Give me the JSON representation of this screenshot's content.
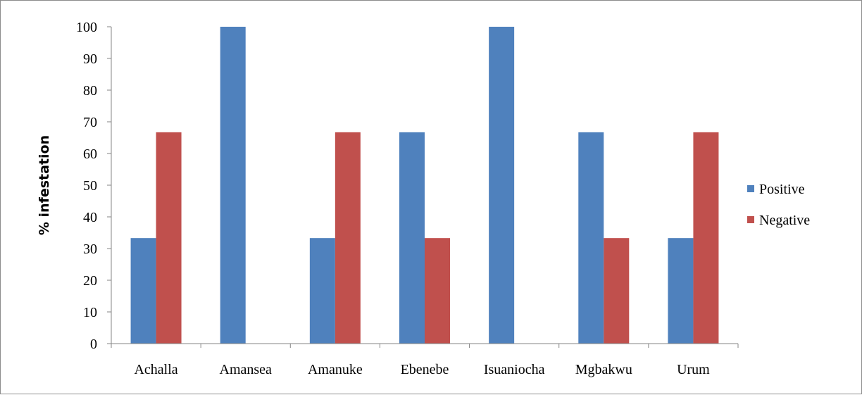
{
  "chart_data": {
    "type": "bar",
    "title": "",
    "xlabel": "",
    "ylabel": "% infestation",
    "ylim": [
      0,
      100
    ],
    "yticks": [
      "0",
      "10",
      "20",
      "30",
      "40",
      "50",
      "60",
      "70",
      "80",
      "90",
      "100"
    ],
    "categories": [
      "Achalla",
      "Amansea",
      "Amanuke",
      "Ebenebe",
      "Isuaniocha",
      "Mgbakwu",
      "Urum"
    ],
    "series": [
      {
        "name": "Positive",
        "color": "#4f81bd",
        "values": [
          33.3,
          100,
          33.3,
          66.7,
          100,
          66.7,
          33.3
        ]
      },
      {
        "name": "Negative",
        "color": "#c0504d",
        "values": [
          66.7,
          0,
          66.7,
          33.3,
          0,
          33.3,
          66.7
        ]
      }
    ],
    "grid": false,
    "legend": "right"
  }
}
